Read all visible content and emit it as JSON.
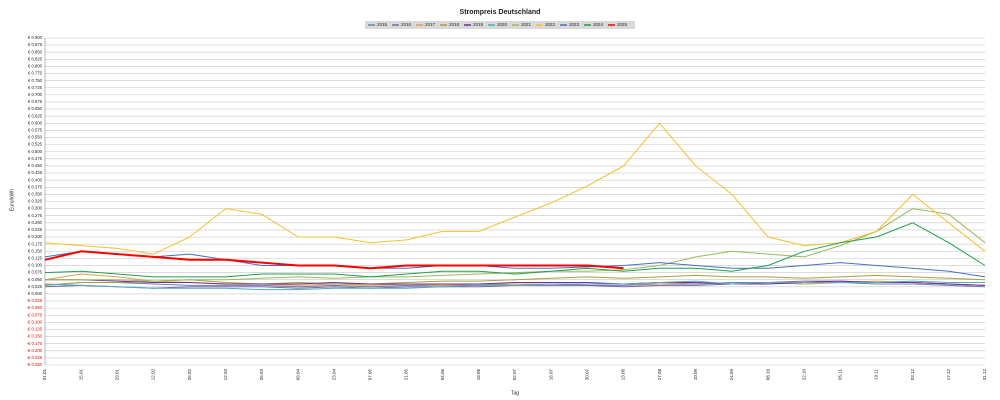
{
  "chart_data": {
    "type": "line",
    "title": "Strompreis Deutschland",
    "y_label": "Euro/kWh",
    "x_label": "Tag",
    "grid": true,
    "legend": "top",
    "categories": [
      "01.01",
      "15.01",
      "29.01",
      "12.02",
      "26.02",
      "12.03",
      "26.03",
      "09.04",
      "23.04",
      "07.05",
      "21.05",
      "04.06",
      "18.06",
      "02.07",
      "16.07",
      "30.07",
      "13.08",
      "27.08",
      "10.09",
      "24.09",
      "08.10",
      "22.10",
      "05.11",
      "19.11",
      "03.12",
      "17.12",
      "31.12"
    ],
    "ylim": [
      -0.25,
      0.9
    ],
    "yticks": [
      {
        "value": -0.25,
        "label": "-€ 0.250"
      },
      {
        "value": -0.225,
        "label": "-€ 0.225"
      },
      {
        "value": -0.2,
        "label": "-€ 0.200"
      },
      {
        "value": -0.175,
        "label": "-€ 0.175"
      },
      {
        "value": -0.15,
        "label": "-€ 0.150"
      },
      {
        "value": -0.125,
        "label": "-€ 0.125"
      },
      {
        "value": -0.1,
        "label": "-€ 0.100"
      },
      {
        "value": -0.075,
        "label": "-€ 0.075"
      },
      {
        "value": -0.05,
        "label": "-€ 0.050"
      },
      {
        "value": -0.025,
        "label": "-€ 0.025"
      },
      {
        "value": 0,
        "label": "€ 0.000"
      },
      {
        "value": 0.025,
        "label": "€ 0.025"
      },
      {
        "value": 0.05,
        "label": "€ 0.050"
      },
      {
        "value": 0.075,
        "label": "€ 0.075"
      },
      {
        "value": 0.1,
        "label": "€ 0.100"
      },
      {
        "value": 0.125,
        "label": "€ 0.125"
      },
      {
        "value": 0.15,
        "label": "€ 0.150"
      },
      {
        "value": 0.175,
        "label": "€ 0.175"
      },
      {
        "value": 0.2,
        "label": "€ 0.200"
      },
      {
        "value": 0.225,
        "label": "€ 0.225"
      },
      {
        "value": 0.25,
        "label": "€ 0.250"
      },
      {
        "value": 0.275,
        "label": "€ 0.275"
      },
      {
        "value": 0.3,
        "label": "€ 0.300"
      },
      {
        "value": 0.325,
        "label": "€ 0.325"
      },
      {
        "value": 0.35,
        "label": "€ 0.350"
      },
      {
        "value": 0.375,
        "label": "€ 0.375"
      },
      {
        "value": 0.4,
        "label": "€ 0.400"
      },
      {
        "value": 0.425,
        "label": "€ 0.425"
      },
      {
        "value": 0.45,
        "label": "€ 0.450"
      },
      {
        "value": 0.475,
        "label": "€ 0.475"
      },
      {
        "value": 0.5,
        "label": "€ 0.500"
      },
      {
        "value": 0.525,
        "label": "€ 0.525"
      },
      {
        "value": 0.55,
        "label": "€ 0.550"
      },
      {
        "value": 0.575,
        "label": "€ 0.575"
      },
      {
        "value": 0.6,
        "label": "€ 0.600"
      },
      {
        "value": 0.625,
        "label": "€ 0.625"
      },
      {
        "value": 0.65,
        "label": "€ 0.650"
      },
      {
        "value": 0.675,
        "label": "€ 0.675"
      },
      {
        "value": 0.7,
        "label": "€ 0.700"
      },
      {
        "value": 0.725,
        "label": "€ 0.725"
      },
      {
        "value": 0.75,
        "label": "€ 0.750"
      },
      {
        "value": 0.775,
        "label": "€ 0.775"
      },
      {
        "value": 0.8,
        "label": "€ 0.800"
      },
      {
        "value": 0.825,
        "label": "€ 0.825"
      },
      {
        "value": 0.85,
        "label": "€ 0.850"
      },
      {
        "value": 0.875,
        "label": "€ 0.875"
      },
      {
        "value": 0.9,
        "label": "€ 0.900"
      }
    ],
    "series": [
      {
        "name": "2015",
        "color": "#6b7fa8",
        "values": [
          0.03,
          0.04,
          0.04,
          0.035,
          0.03,
          0.03,
          0.03,
          0.025,
          0.03,
          0.025,
          0.03,
          0.03,
          0.03,
          0.035,
          0.035,
          0.03,
          0.03,
          0.035,
          0.035,
          0.04,
          0.04,
          0.035,
          0.04,
          0.035,
          0.035,
          0.03,
          0.025
        ]
      },
      {
        "name": "2016",
        "color": "#8064a2",
        "values": [
          0.025,
          0.03,
          0.025,
          0.02,
          0.025,
          0.025,
          0.025,
          0.02,
          0.025,
          0.02,
          0.025,
          0.025,
          0.025,
          0.03,
          0.03,
          0.03,
          0.025,
          0.03,
          0.03,
          0.035,
          0.04,
          0.045,
          0.045,
          0.04,
          0.04,
          0.035,
          0.03
        ]
      },
      {
        "name": "2017",
        "color": "#e0a050",
        "values": [
          0.05,
          0.07,
          0.06,
          0.045,
          0.04,
          0.035,
          0.035,
          0.03,
          0.035,
          0.03,
          0.035,
          0.03,
          0.035,
          0.035,
          0.035,
          0.035,
          0.035,
          0.035,
          0.04,
          0.035,
          0.04,
          0.035,
          0.04,
          0.045,
          0.04,
          0.035,
          0.03
        ]
      },
      {
        "name": "2018",
        "color": "#a8a040",
        "values": [
          0.03,
          0.04,
          0.04,
          0.045,
          0.05,
          0.04,
          0.035,
          0.04,
          0.035,
          0.035,
          0.04,
          0.045,
          0.045,
          0.05,
          0.055,
          0.06,
          0.055,
          0.06,
          0.065,
          0.06,
          0.06,
          0.055,
          0.06,
          0.065,
          0.06,
          0.055,
          0.05
        ]
      },
      {
        "name": "2019",
        "color": "#7030a0",
        "values": [
          0.05,
          0.05,
          0.045,
          0.04,
          0.04,
          0.035,
          0.035,
          0.035,
          0.04,
          0.035,
          0.035,
          0.035,
          0.035,
          0.04,
          0.04,
          0.04,
          0.035,
          0.04,
          0.04,
          0.035,
          0.035,
          0.04,
          0.045,
          0.04,
          0.04,
          0.035,
          0.03
        ]
      },
      {
        "name": "2020",
        "color": "#4bacc6",
        "values": [
          0.035,
          0.03,
          0.025,
          0.02,
          0.02,
          0.02,
          0.015,
          0.015,
          0.02,
          0.02,
          0.02,
          0.025,
          0.03,
          0.03,
          0.035,
          0.035,
          0.035,
          0.04,
          0.045,
          0.035,
          0.04,
          0.04,
          0.04,
          0.04,
          0.045,
          0.04,
          0.04
        ]
      },
      {
        "name": "2021",
        "color": "#9bbb59",
        "values": [
          0.05,
          0.05,
          0.05,
          0.045,
          0.05,
          0.05,
          0.055,
          0.06,
          0.055,
          0.06,
          0.06,
          0.065,
          0.07,
          0.075,
          0.08,
          0.08,
          0.085,
          0.1,
          0.13,
          0.15,
          0.14,
          0.13,
          0.17,
          0.22,
          0.3,
          0.28,
          0.18
        ]
      },
      {
        "name": "2022",
        "color": "#f2c12e",
        "values": [
          0.18,
          0.17,
          0.16,
          0.14,
          0.2,
          0.3,
          0.28,
          0.2,
          0.2,
          0.18,
          0.19,
          0.22,
          0.22,
          0.27,
          0.32,
          0.38,
          0.45,
          0.6,
          0.45,
          0.35,
          0.2,
          0.17,
          0.18,
          0.22,
          0.35,
          0.25,
          0.15
        ]
      },
      {
        "name": "2023",
        "color": "#4472c4",
        "values": [
          0.13,
          0.15,
          0.14,
          0.13,
          0.14,
          0.12,
          0.1,
          0.1,
          0.1,
          0.09,
          0.09,
          0.1,
          0.1,
          0.09,
          0.09,
          0.095,
          0.1,
          0.11,
          0.1,
          0.09,
          0.09,
          0.1,
          0.11,
          0.1,
          0.09,
          0.08,
          0.06
        ]
      },
      {
        "name": "2024",
        "color": "#20a050",
        "values": [
          0.075,
          0.08,
          0.07,
          0.06,
          0.06,
          0.06,
          0.07,
          0.07,
          0.07,
          0.06,
          0.07,
          0.08,
          0.08,
          0.07,
          0.08,
          0.09,
          0.08,
          0.09,
          0.09,
          0.08,
          0.1,
          0.15,
          0.18,
          0.2,
          0.25,
          0.18,
          0.1
        ]
      },
      {
        "name": "2025",
        "color": "#ff0000",
        "values": [
          0.12,
          0.15,
          0.14,
          0.13,
          0.12,
          0.12,
          0.11,
          0.1,
          0.1,
          0.09,
          0.1,
          0.1,
          0.1,
          0.1,
          0.1,
          0.1,
          0.09,
          null,
          null,
          null,
          null,
          null,
          null,
          null,
          null,
          null,
          null
        ]
      }
    ]
  }
}
